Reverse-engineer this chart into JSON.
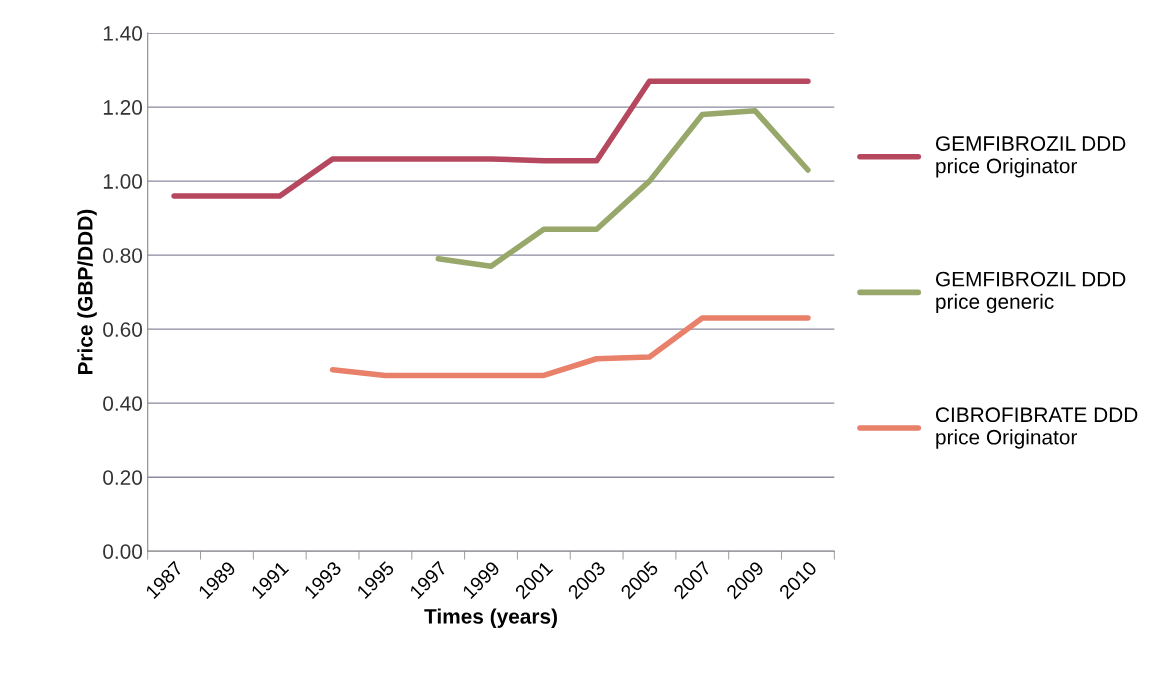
{
  "chart_data": {
    "type": "line",
    "xlabel": "Times (years)",
    "ylabel": "Price (GBP/DDD)",
    "categories": [
      "1987",
      "1989",
      "1991",
      "1993",
      "1995",
      "1997",
      "1999",
      "2001",
      "2003",
      "2005",
      "2007",
      "2009",
      "2010"
    ],
    "series": [
      {
        "name": "GEMFIBROZIL DDD\nprice Originator",
        "color": "#b5485e",
        "values": [
          0.96,
          0.96,
          0.96,
          1.06,
          1.06,
          1.06,
          1.06,
          1.055,
          1.055,
          1.27,
          1.27,
          1.27,
          1.27
        ]
      },
      {
        "name": "GEMFIBROZIL DDD\nprice generic",
        "color": "#98a86a",
        "values": [
          null,
          null,
          null,
          null,
          null,
          0.79,
          0.77,
          0.87,
          0.87,
          1.0,
          1.18,
          1.19,
          1.03
        ]
      },
      {
        "name": "CIBROFIBRATE DDD\nprice Originator",
        "color": "#e8806a",
        "values": [
          null,
          null,
          null,
          0.49,
          0.475,
          0.475,
          0.475,
          0.475,
          0.52,
          0.525,
          0.63,
          0.63,
          0.63
        ]
      }
    ],
    "ylim": [
      0,
      1.4
    ],
    "yticks": [
      {
        "value": 0,
        "label": "0.00"
      },
      {
        "value": 0.2,
        "label": "0.20"
      },
      {
        "value": 0.4,
        "label": "0.40"
      },
      {
        "value": 0.6,
        "label": "0.60"
      },
      {
        "value": 0.8,
        "label": "0.80"
      },
      {
        "value": 1.0,
        "label": "1.00"
      },
      {
        "value": 1.2,
        "label": "1.20"
      },
      {
        "value": 1.4,
        "label": "1.40"
      }
    ],
    "grid": "y",
    "legend": "right",
    "marker": "none",
    "line_style": "solid"
  }
}
